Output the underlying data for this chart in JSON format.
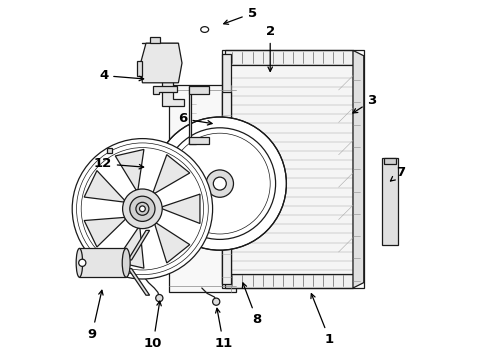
{
  "bg_color": "#ffffff",
  "line_color": "#1a1a1a",
  "label_color": "#000000",
  "figsize": [
    4.9,
    3.6
  ],
  "dpi": 100,
  "labels": {
    "1": {
      "lpos": [
        0.735,
        0.075
      ],
      "apos": [
        0.68,
        0.195
      ],
      "ha": "center",
      "va": "top"
    },
    "2": {
      "lpos": [
        0.57,
        0.895
      ],
      "apos": [
        0.57,
        0.79
      ],
      "ha": "center",
      "va": "bottom"
    },
    "3": {
      "lpos": [
        0.84,
        0.72
      ],
      "apos": [
        0.79,
        0.68
      ],
      "ha": "left",
      "va": "center"
    },
    "4": {
      "lpos": [
        0.12,
        0.79
      ],
      "apos": [
        0.23,
        0.78
      ],
      "ha": "right",
      "va": "center"
    },
    "5": {
      "lpos": [
        0.52,
        0.945
      ],
      "apos": [
        0.43,
        0.93
      ],
      "ha": "center",
      "va": "bottom"
    },
    "6": {
      "lpos": [
        0.34,
        0.67
      ],
      "apos": [
        0.42,
        0.655
      ],
      "ha": "right",
      "va": "center"
    },
    "7": {
      "lpos": [
        0.92,
        0.52
      ],
      "apos": [
        0.895,
        0.49
      ],
      "ha": "left",
      "va": "center"
    },
    "8": {
      "lpos": [
        0.52,
        0.13
      ],
      "apos": [
        0.49,
        0.225
      ],
      "ha": "left",
      "va": "top"
    },
    "9": {
      "lpos": [
        0.075,
        0.09
      ],
      "apos": [
        0.105,
        0.205
      ],
      "ha": "center",
      "va": "top"
    },
    "10": {
      "lpos": [
        0.245,
        0.065
      ],
      "apos": [
        0.265,
        0.175
      ],
      "ha": "center",
      "va": "top"
    },
    "11": {
      "lpos": [
        0.44,
        0.065
      ],
      "apos": [
        0.42,
        0.155
      ],
      "ha": "center",
      "va": "top"
    },
    "12": {
      "lpos": [
        0.13,
        0.545
      ],
      "apos": [
        0.23,
        0.535
      ],
      "ha": "right",
      "va": "center"
    }
  }
}
